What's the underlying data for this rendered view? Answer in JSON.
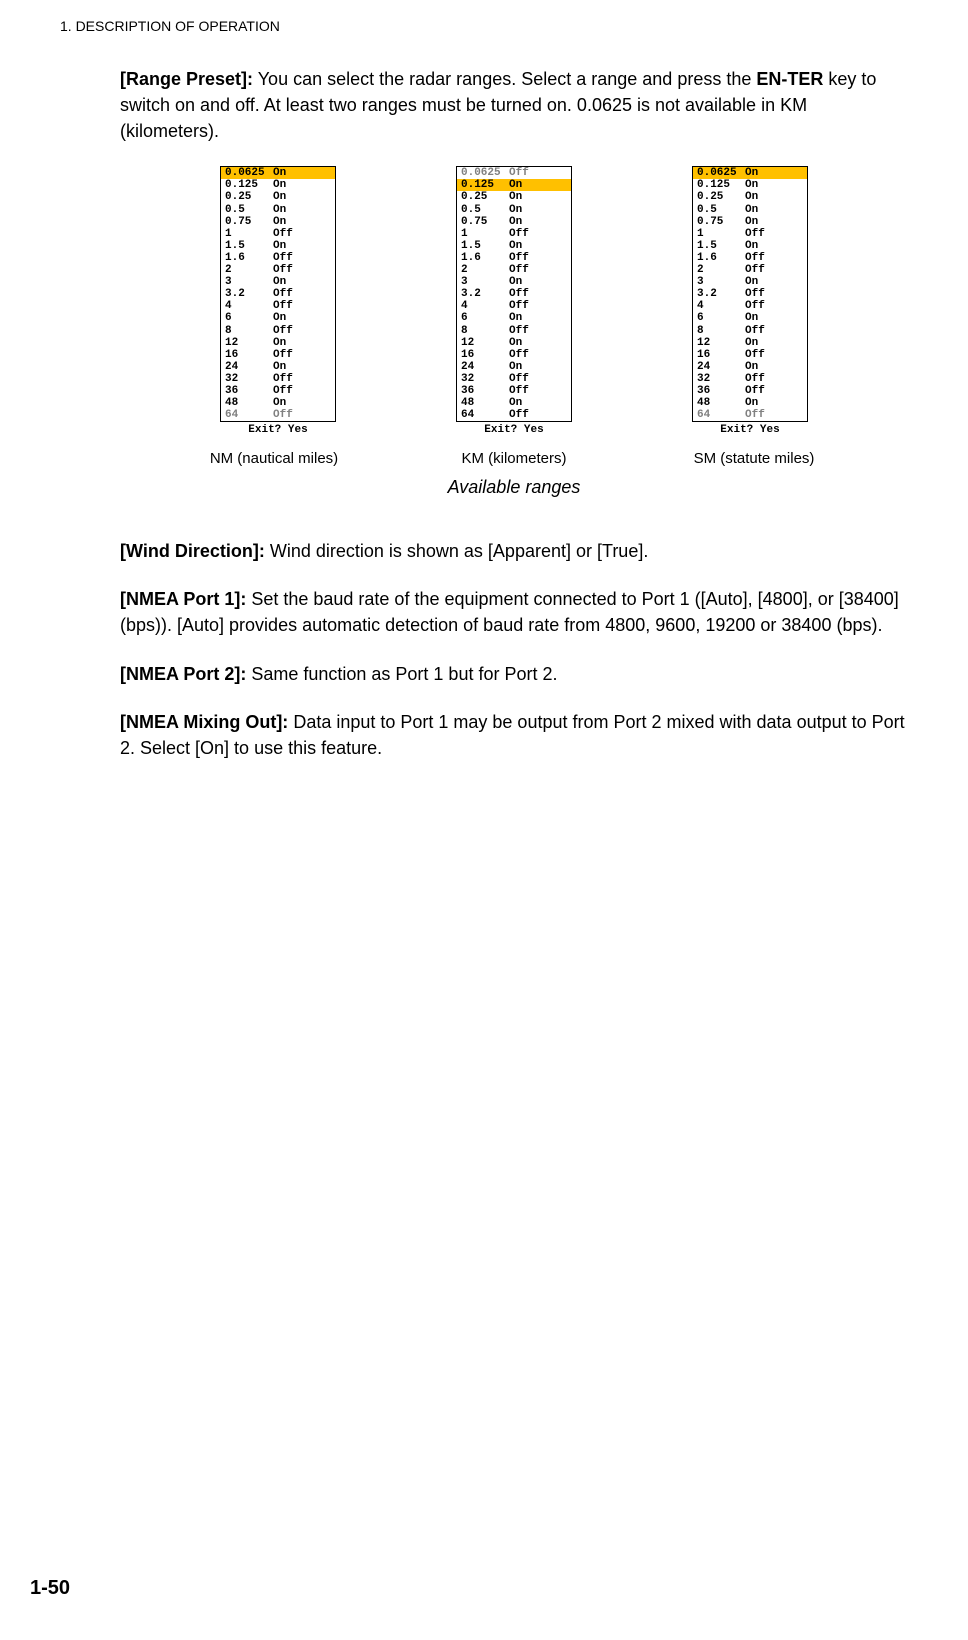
{
  "chapter": "1.  DESCRIPTION OF OPERATION",
  "para1_label": "[Range Preset]:",
  "para1_text_a": " You can select the radar ranges. Select a range and press the ",
  "para1_bold_mid": "EN-TER",
  "para1_text_b": " key to switch on and off. At least two ranges must be turned on. 0.0625 is not available in KM (kilometers).",
  "fig": {
    "nm": {
      "rows": [
        {
          "v": "0.0625",
          "s": "On",
          "hl": true
        },
        {
          "v": "0.125",
          "s": "On"
        },
        {
          "v": "0.25",
          "s": "On"
        },
        {
          "v": "0.5",
          "s": "On"
        },
        {
          "v": "0.75",
          "s": "On"
        },
        {
          "v": "1",
          "s": "Off"
        },
        {
          "v": "1.5",
          "s": "On"
        },
        {
          "v": "1.6",
          "s": "Off"
        },
        {
          "v": "2",
          "s": "Off"
        },
        {
          "v": "3",
          "s": "On"
        },
        {
          "v": "3.2",
          "s": "Off"
        },
        {
          "v": "4",
          "s": "Off"
        },
        {
          "v": "6",
          "s": "On"
        },
        {
          "v": "8",
          "s": "Off"
        },
        {
          "v": "12",
          "s": "On"
        },
        {
          "v": "16",
          "s": "Off"
        },
        {
          "v": "24",
          "s": "On"
        },
        {
          "v": "32",
          "s": "Off"
        },
        {
          "v": "36",
          "s": "Off"
        },
        {
          "v": "48",
          "s": "On"
        },
        {
          "v": "64",
          "s": "Off",
          "dim": true
        }
      ],
      "exit": "Exit? Yes",
      "caption": "NM (nautical miles)"
    },
    "km": {
      "rows": [
        {
          "v": "0.0625",
          "s": "Off",
          "dim": true
        },
        {
          "v": "0.125",
          "s": "On",
          "hl": true
        },
        {
          "v": "0.25",
          "s": "On"
        },
        {
          "v": "0.5",
          "s": "On"
        },
        {
          "v": "0.75",
          "s": "On"
        },
        {
          "v": "1",
          "s": "Off"
        },
        {
          "v": "1.5",
          "s": "On"
        },
        {
          "v": "1.6",
          "s": "Off"
        },
        {
          "v": "2",
          "s": "Off"
        },
        {
          "v": "3",
          "s": "On"
        },
        {
          "v": "3.2",
          "s": "Off"
        },
        {
          "v": "4",
          "s": "Off"
        },
        {
          "v": "6",
          "s": "On"
        },
        {
          "v": "8",
          "s": "Off"
        },
        {
          "v": "12",
          "s": "On"
        },
        {
          "v": "16",
          "s": "Off"
        },
        {
          "v": "24",
          "s": "On"
        },
        {
          "v": "32",
          "s": "Off"
        },
        {
          "v": "36",
          "s": "Off"
        },
        {
          "v": "48",
          "s": "On"
        },
        {
          "v": "64",
          "s": "Off"
        }
      ],
      "exit": "Exit? Yes",
      "caption": "KM (kilometers)"
    },
    "sm": {
      "rows": [
        {
          "v": "0.0625",
          "s": "On",
          "hl": true
        },
        {
          "v": "0.125",
          "s": "On"
        },
        {
          "v": "0.25",
          "s": "On"
        },
        {
          "v": "0.5",
          "s": "On"
        },
        {
          "v": "0.75",
          "s": "On"
        },
        {
          "v": "1",
          "s": "Off"
        },
        {
          "v": "1.5",
          "s": "On"
        },
        {
          "v": "1.6",
          "s": "Off"
        },
        {
          "v": "2",
          "s": "Off"
        },
        {
          "v": "3",
          "s": "On"
        },
        {
          "v": "3.2",
          "s": "Off"
        },
        {
          "v": "4",
          "s": "Off"
        },
        {
          "v": "6",
          "s": "On"
        },
        {
          "v": "8",
          "s": "Off"
        },
        {
          "v": "12",
          "s": "On"
        },
        {
          "v": "16",
          "s": "Off"
        },
        {
          "v": "24",
          "s": "On"
        },
        {
          "v": "32",
          "s": "Off"
        },
        {
          "v": "36",
          "s": "Off"
        },
        {
          "v": "48",
          "s": "On"
        },
        {
          "v": "64",
          "s": "Off",
          "dim": true
        }
      ],
      "exit": "Exit? Yes",
      "caption": "SM (statute miles)"
    },
    "title": "Available ranges"
  },
  "para_wind_label": "[Wind Direction]:",
  "para_wind_text": " Wind direction is shown as [Apparent] or [True].",
  "para_p1_label": "[NMEA Port 1]:",
  "para_p1_text": " Set the baud rate of the equipment connected to Port 1 ([Auto], [4800], or [38400] (bps)). [Auto] provides automatic detection of baud rate from 4800, 9600, 19200 or 38400 (bps).",
  "para_p2_label": "[NMEA Port 2]:",
  "para_p2_text": " Same function as Port 1 but for Port 2.",
  "para_mix_label": "[NMEA Mixing Out]:",
  "para_mix_text": " Data input to Port 1 may be output from Port 2 mixed with data output to Port 2. Select [On] to use this feature.",
  "page_number": "1-50"
}
